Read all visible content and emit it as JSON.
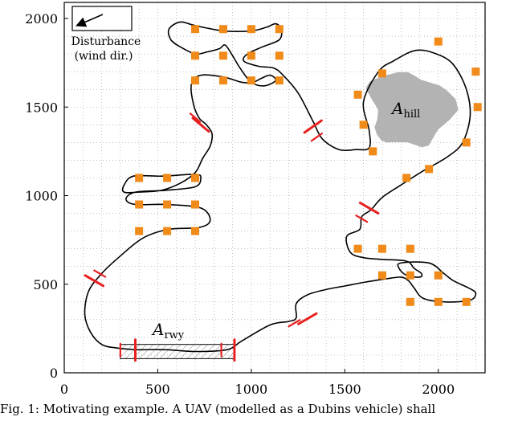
{
  "chart_data": {
    "type": "scatter",
    "xlim": [
      0,
      2250
    ],
    "ylim": [
      0,
      2000
    ],
    "x_ticks": [
      0,
      500,
      1000,
      1500,
      2000
    ],
    "y_ticks": [
      0,
      500,
      1000,
      1500,
      2000
    ],
    "grid": "dotted",
    "waypoints": [
      [
        700,
        1940
      ],
      [
        850,
        1940
      ],
      [
        1000,
        1940
      ],
      [
        1150,
        1940
      ],
      [
        700,
        1790
      ],
      [
        850,
        1790
      ],
      [
        1000,
        1790
      ],
      [
        1150,
        1790
      ],
      [
        700,
        1650
      ],
      [
        850,
        1650
      ],
      [
        1000,
        1650
      ],
      [
        1150,
        1650
      ],
      [
        400,
        1100
      ],
      [
        550,
        1100
      ],
      [
        700,
        1100
      ],
      [
        400,
        950
      ],
      [
        550,
        950
      ],
      [
        700,
        950
      ],
      [
        400,
        800
      ],
      [
        550,
        800
      ],
      [
        700,
        800
      ],
      [
        1570,
        1570
      ],
      [
        1600,
        1400
      ],
      [
        1650,
        1250
      ],
      [
        1700,
        1690
      ],
      [
        2000,
        1870
      ],
      [
        2200,
        1700
      ],
      [
        2210,
        1500
      ],
      [
        2150,
        1300
      ],
      [
        1950,
        1150
      ],
      [
        1830,
        1100
      ],
      [
        1570,
        700
      ],
      [
        1700,
        700
      ],
      [
        1850,
        700
      ],
      [
        1700,
        550
      ],
      [
        1850,
        550
      ],
      [
        2000,
        550
      ],
      [
        1850,
        400
      ],
      [
        2000,
        400
      ],
      [
        2150,
        400
      ]
    ],
    "path": [
      [
        380,
        130
      ],
      [
        280,
        140
      ],
      [
        200,
        160
      ],
      [
        140,
        230
      ],
      [
        110,
        330
      ],
      [
        130,
        460
      ],
      [
        200,
        560
      ],
      [
        290,
        650
      ],
      [
        420,
        760
      ],
      [
        560,
        810
      ],
      [
        720,
        820
      ],
      [
        780,
        860
      ],
      [
        730,
        930
      ],
      [
        540,
        950
      ],
      [
        380,
        950
      ],
      [
        330,
        980
      ],
      [
        380,
        1020
      ],
      [
        540,
        1030
      ],
      [
        700,
        1050
      ],
      [
        730,
        1100
      ],
      [
        700,
        1120
      ],
      [
        520,
        1110
      ],
      [
        370,
        1110
      ],
      [
        320,
        1060
      ],
      [
        320,
        1020
      ],
      [
        400,
        1020
      ],
      [
        520,
        1030
      ],
      [
        620,
        1070
      ],
      [
        700,
        1130
      ],
      [
        740,
        1210
      ],
      [
        780,
        1280
      ],
      [
        790,
        1350
      ],
      [
        760,
        1400
      ],
      [
        720,
        1440
      ],
      [
        690,
        1520
      ],
      [
        680,
        1630
      ],
      [
        730,
        1680
      ],
      [
        850,
        1670
      ],
      [
        950,
        1640
      ],
      [
        1010,
        1640
      ],
      [
        1050,
        1660
      ],
      [
        1100,
        1680
      ],
      [
        1130,
        1650
      ],
      [
        1070,
        1620
      ],
      [
        1000,
        1640
      ],
      [
        940,
        1720
      ],
      [
        900,
        1790
      ],
      [
        860,
        1850
      ],
      [
        830,
        1830
      ],
      [
        760,
        1810
      ],
      [
        700,
        1800
      ],
      [
        620,
        1840
      ],
      [
        570,
        1880
      ],
      [
        560,
        1940
      ],
      [
        620,
        1980
      ],
      [
        700,
        1960
      ],
      [
        850,
        1930
      ],
      [
        1000,
        1930
      ],
      [
        1080,
        1950
      ],
      [
        1130,
        1970
      ],
      [
        1160,
        1940
      ],
      [
        1150,
        1880
      ],
      [
        1060,
        1840
      ],
      [
        980,
        1800
      ],
      [
        960,
        1760
      ],
      [
        1040,
        1730
      ],
      [
        1120,
        1720
      ],
      [
        1170,
        1680
      ],
      [
        1250,
        1580
      ],
      [
        1330,
        1420
      ],
      [
        1380,
        1320
      ],
      [
        1470,
        1260
      ],
      [
        1560,
        1260
      ],
      [
        1630,
        1270
      ],
      [
        1630,
        1370
      ],
      [
        1600,
        1530
      ],
      [
        1680,
        1700
      ],
      [
        1760,
        1760
      ],
      [
        1880,
        1820
      ],
      [
        1990,
        1800
      ],
      [
        2080,
        1740
      ],
      [
        2150,
        1600
      ],
      [
        2170,
        1450
      ],
      [
        2130,
        1300
      ],
      [
        2050,
        1220
      ],
      [
        1920,
        1140
      ],
      [
        1800,
        1060
      ],
      [
        1700,
        990
      ],
      [
        1640,
        920
      ],
      [
        1590,
        880
      ],
      [
        1580,
        810
      ],
      [
        1510,
        770
      ],
      [
        1530,
        680
      ],
      [
        1600,
        650
      ],
      [
        1700,
        640
      ],
      [
        1830,
        630
      ],
      [
        1870,
        590
      ],
      [
        1910,
        560
      ],
      [
        1900,
        540
      ],
      [
        1830,
        550
      ],
      [
        1790,
        590
      ],
      [
        1800,
        620
      ],
      [
        1950,
        620
      ],
      [
        2030,
        560
      ],
      [
        2080,
        520
      ],
      [
        2160,
        480
      ],
      [
        2200,
        450
      ],
      [
        2170,
        410
      ],
      [
        2040,
        400
      ],
      [
        1920,
        420
      ],
      [
        1870,
        480
      ],
      [
        1840,
        520
      ],
      [
        1800,
        540
      ],
      [
        1720,
        530
      ],
      [
        1600,
        510
      ],
      [
        1500,
        490
      ],
      [
        1400,
        470
      ],
      [
        1300,
        440
      ],
      [
        1240,
        390
      ],
      [
        1240,
        310
      ],
      [
        1200,
        290
      ],
      [
        1100,
        270
      ],
      [
        950,
        180
      ],
      [
        870,
        130
      ],
      [
        700,
        120
      ],
      [
        550,
        130
      ],
      [
        420,
        130
      ],
      [
        380,
        130
      ]
    ],
    "crossings": [
      {
        "x": 380,
        "y": 128,
        "angle": 90
      },
      {
        "x": 300,
        "y": 128,
        "angle": 90
      },
      {
        "x": 910,
        "y": 128,
        "angle": 90
      },
      {
        "x": 840,
        "y": 128,
        "angle": 90
      },
      {
        "x": 1300,
        "y": 305,
        "angle": 30
      },
      {
        "x": 1230,
        "y": 280,
        "angle": 30
      },
      {
        "x": 1630,
        "y": 930,
        "angle": -30
      },
      {
        "x": 1590,
        "y": 870,
        "angle": -30
      },
      {
        "x": 1330,
        "y": 1390,
        "angle": 35
      },
      {
        "x": 1350,
        "y": 1330,
        "angle": 35
      },
      {
        "x": 730,
        "y": 1400,
        "angle": -40
      },
      {
        "x": 700,
        "y": 1440,
        "angle": -40
      },
      {
        "x": 160,
        "y": 520,
        "angle": -30
      },
      {
        "x": 190,
        "y": 560,
        "angle": -30
      }
    ],
    "hill": {
      "x": [
        1560,
        2110
      ],
      "y": [
        1200,
        1770
      ]
    },
    "runway": {
      "x": [
        300,
        910
      ],
      "y": [
        80,
        160
      ]
    },
    "wind_direction": "south-west"
  },
  "labels": {
    "disturbance": "Disturbance",
    "wind": "(wind dir.)",
    "hill": "A",
    "hill_sub": "hill",
    "runway": "A",
    "runway_sub": "rwy"
  },
  "caption": "Fig. 1: Motivating example. A UAV (modelled as a Dubins vehicle) shall",
  "colors": {
    "waypoint": "#f08a18",
    "crossing": "#e82020",
    "hill": "#b3b3b3",
    "path": "#000000"
  }
}
